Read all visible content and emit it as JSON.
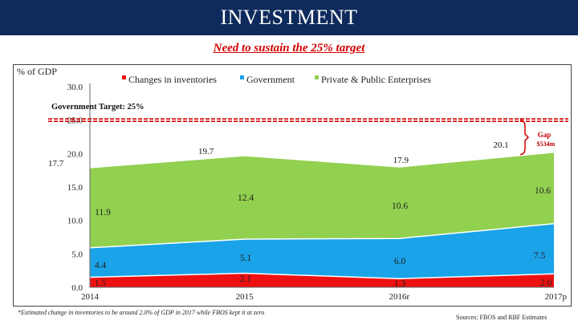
{
  "header": {
    "title": "INVESTMENT"
  },
  "subtitle": "Need to sustain the 25% target",
  "footnote": "*Estimated change in inventories to be around 2.0% of GDP in 2017 while FBOS kept it at zero",
  "sources": "Sources: FBOS and RBF Estimates",
  "colors": {
    "header_bg": "#0f2a5c",
    "subtitle": "#d40000",
    "changes": "#ee1111",
    "government": "#1aa3e8",
    "private": "#92d050",
    "target": "#d40000"
  },
  "chart_data": {
    "type": "area",
    "stacked": true,
    "ylabel": "% of GDP",
    "ylim": [
      0,
      30
    ],
    "yticks": [
      "0.0",
      "5.0",
      "10.0",
      "15.0",
      "20.0",
      "25.0",
      "30.0"
    ],
    "ytick_values": [
      0,
      5,
      10,
      15,
      20,
      25,
      30
    ],
    "categories": [
      "2014",
      "2015",
      "2016r",
      "2017p"
    ],
    "legend_position": "top",
    "series": [
      {
        "name": "Changes in inventories",
        "values": [
          1.5,
          2.1,
          1.3,
          2.0
        ],
        "labels": [
          "1.5",
          "2.1",
          "1.3",
          "2.0"
        ]
      },
      {
        "name": "Government",
        "values": [
          4.4,
          5.1,
          6.0,
          7.5
        ],
        "labels": [
          "4.4",
          "5.1",
          "6.0",
          "7.5"
        ]
      },
      {
        "name": "Private  & Public Enterprises",
        "values": [
          11.9,
          12.4,
          10.6,
          10.6
        ],
        "labels": [
          "11.9",
          "12.4",
          "10.6",
          "10.6"
        ]
      }
    ],
    "totals": [
      "17.7",
      "19.7",
      "17.9",
      "20.1"
    ],
    "target": {
      "value": 25,
      "label": "Government Target: 25%"
    },
    "gap_annotation": {
      "label": "Gap",
      "value": "$534m"
    }
  }
}
